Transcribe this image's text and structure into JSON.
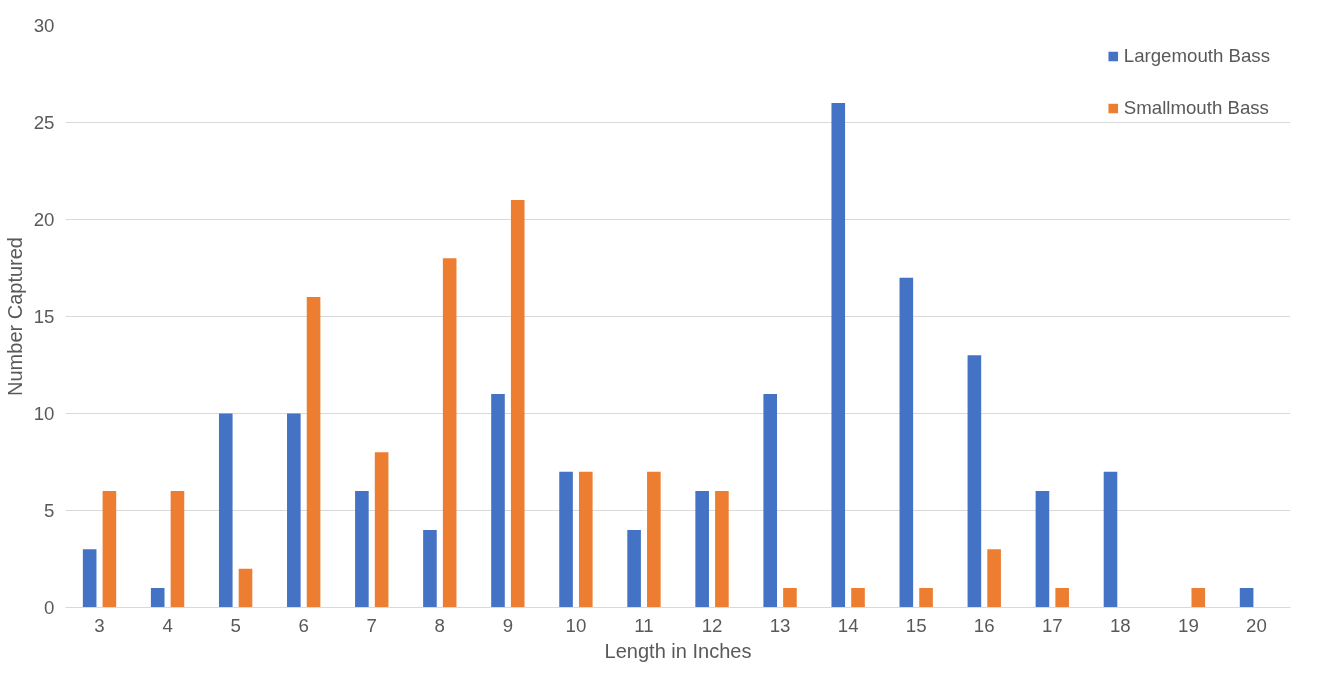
{
  "chart_data": {
    "type": "bar",
    "xlabel": "Length in Inches",
    "ylabel": "Number Captured",
    "categories": [
      "3",
      "4",
      "5",
      "6",
      "7",
      "8",
      "9",
      "10",
      "11",
      "12",
      "13",
      "14",
      "15",
      "16",
      "17",
      "18",
      "19",
      "20"
    ],
    "series": [
      {
        "name": "Largemouth Bass",
        "color": "#4472c4",
        "values": [
          3,
          1,
          10,
          10,
          6,
          4,
          11,
          7,
          4,
          6,
          11,
          26,
          17,
          13,
          6,
          7,
          0,
          1
        ]
      },
      {
        "name": "Smallmouth Bass",
        "color": "#ed7d31",
        "values": [
          6,
          6,
          2,
          16,
          8,
          18,
          21,
          7,
          7,
          6,
          1,
          1,
          1,
          3,
          1,
          0,
          1,
          0
        ]
      }
    ],
    "ylim": [
      0,
      30
    ],
    "yticks": [
      0,
      5,
      10,
      15,
      20,
      25,
      30
    ],
    "grid": "y",
    "legend": "top right"
  }
}
